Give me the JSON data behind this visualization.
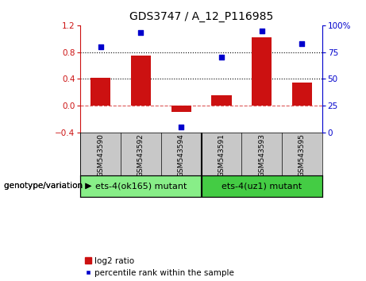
{
  "title": "GDS3747 / A_12_P116985",
  "samples": [
    "GSM543590",
    "GSM543592",
    "GSM543594",
    "GSM543591",
    "GSM543593",
    "GSM543595"
  ],
  "log2_ratio": [
    0.41,
    0.75,
    -0.09,
    0.15,
    1.02,
    0.35
  ],
  "percentile_rank": [
    80,
    93,
    5,
    70,
    95,
    83
  ],
  "bar_color": "#cc1111",
  "dot_color": "#0000cc",
  "ylim_left": [
    -0.4,
    1.2
  ],
  "ylim_right": [
    0,
    100
  ],
  "yticks_left": [
    -0.4,
    0.0,
    0.4,
    0.8,
    1.2
  ],
  "yticks_right": [
    0,
    25,
    50,
    75,
    100
  ],
  "ytick_labels_right": [
    "0",
    "25",
    "50",
    "75",
    "100%"
  ],
  "hlines": [
    0.4,
    0.8
  ],
  "zero_line_y": 0.0,
  "groups": [
    {
      "label": "ets-4(ok165) mutant",
      "indices": [
        0,
        1,
        2
      ],
      "color": "#88ee88"
    },
    {
      "label": "ets-4(uz1) mutant",
      "indices": [
        3,
        4,
        5
      ],
      "color": "#44cc44"
    }
  ],
  "group_label": "genotype/variation",
  "legend_bar_label": "log2 ratio",
  "legend_dot_label": "percentile rank within the sample",
  "background_color": "#ffffff",
  "tick_label_area_color": "#c8c8c8",
  "title_fontsize": 10,
  "axis_fontsize": 7.5,
  "sample_fontsize": 6.5,
  "legend_fontsize": 7.5,
  "group_fontsize": 8
}
